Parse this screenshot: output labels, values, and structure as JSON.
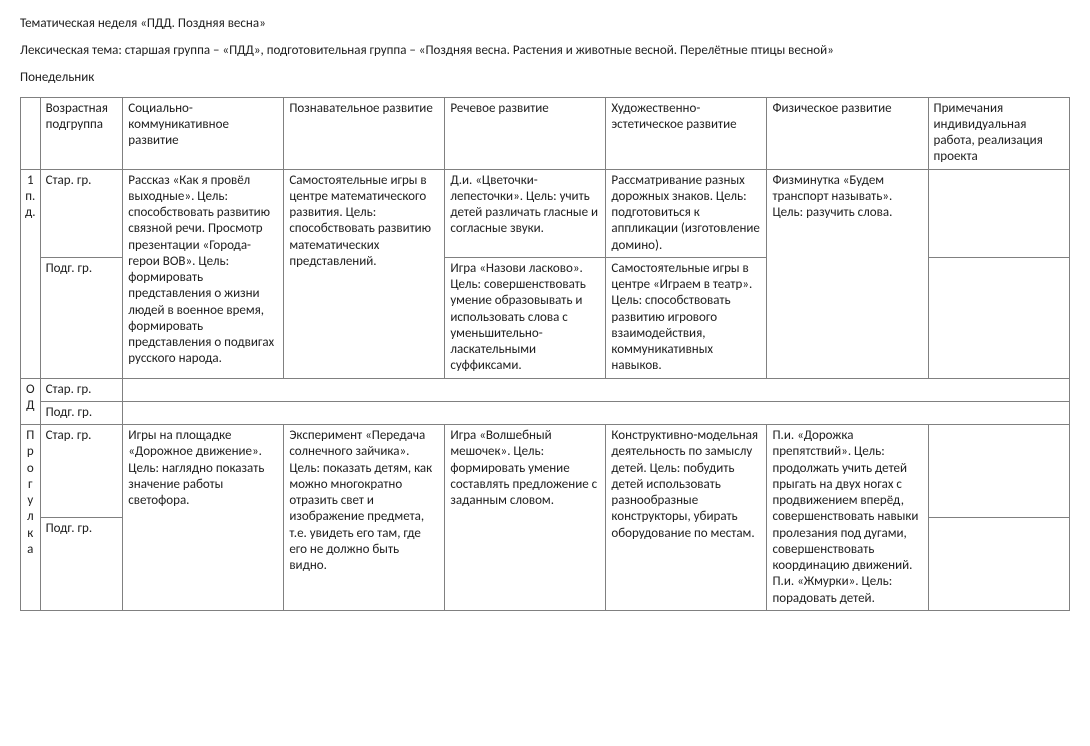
{
  "title": "Тематическая неделя «ПДД. Поздняя весна»",
  "subtitle": "Лексическая тема: старшая группа – «ПДД», подготовительная группа – «Поздняя весна. Растения и животные весной. Перелётные птицы весной»",
  "day": "Понедельник",
  "columns": {
    "age": "Возрастная подгруппа",
    "social": "Социально-коммуникативное развитие",
    "cognitive": "Познавательное развитие",
    "speech": "Речевое развитие",
    "art": "Художественно-эстетическое развитие",
    "physical": "Физическое развитие",
    "notes": "Примечания индивидуальная работа, реализация проекта"
  },
  "periods": {
    "p1": "1\nп.\nд.",
    "od": "О\nД",
    "walk": "П\nр\nо\nг\nу\nл\nк\nа"
  },
  "ages": {
    "senior": "Стар. гр.",
    "prep": "Подг. гр."
  },
  "p1": {
    "social": "Рассказ «Как я провёл выходные». Цель: способствовать развитию связной речи. Просмотр презентации «Города-герои ВОВ». Цель: формировать представления о жизни людей в военное время, формировать представления о подвигах русского народа.",
    "cognitive": "Самостоятельные игры в центре математического развития. Цель: способствовать развитию математических представлений.",
    "speech_senior": "Д.и. «Цветочки-лепесточки». Цель: учить детей различать гласные и согласные звуки.",
    "speech_prep": "Игра «Назови ласково». Цель: совершенствовать умение образовывать и использовать слова с уменьшительно-ласкательными суффиксами.",
    "art_senior": "Рассматривание разных дорожных знаков. Цель: подготовиться к аппликации (изготовление домино).",
    "art_prep": "Самостоятельные игры в центре «Играем в театр». Цель: способствовать развитию игрового взаимодействия, коммуникативных навыков.",
    "physical": "Физминутка «Будем транспорт называть». Цель: разучить слова."
  },
  "walk": {
    "social": "Игры на площадке «Дорожное движение». Цель: наглядно показать значение работы светофора.",
    "cognitive": "Эксперимент «Передача солнечного зайчика». Цель: показать детям, как можно многократно отразить свет и изображение предмета, т.е. увидеть его там, где его не должно быть видно.",
    "speech": "Игра «Волшебный мешочек». Цель: формировать умение составлять предложение с заданным словом.",
    "art": "Конструктивно-модельная деятельность по замыслу детей. Цель: побудить детей использовать разнообразные конструкторы, убирать оборудование по местам.",
    "physical": "П.и. «Дорожка препятствий». Цель: продолжать учить детей прыгать на двух ногах с продвижением вперёд, совершенствовать навыки пролезания под дугами, совершенствовать координацию движений. П.и. «Жмурки». Цель: порадовать детей."
  }
}
